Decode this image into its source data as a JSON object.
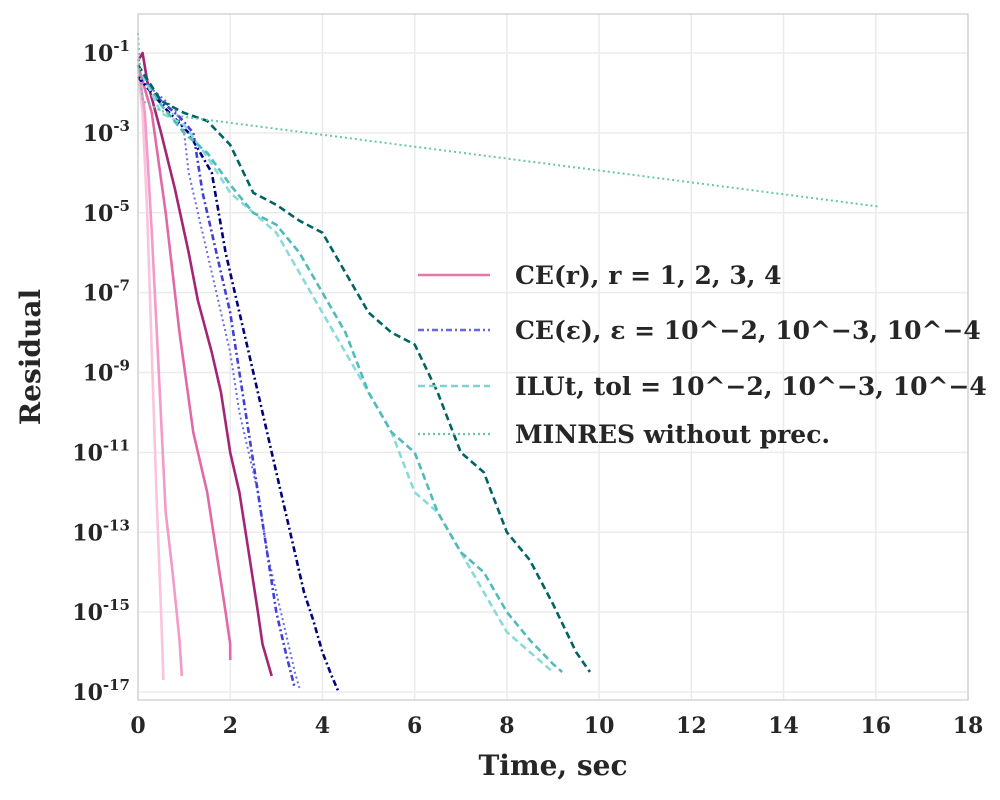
{
  "chart_data": {
    "type": "line",
    "xlabel": "Time, sec",
    "ylabel": "Residual",
    "xlim": [
      0,
      18
    ],
    "ylim_log10": [
      -17,
      0
    ],
    "x_ticks": [
      "0",
      "2",
      "4",
      "6",
      "8",
      "10",
      "12",
      "14",
      "16",
      "18"
    ],
    "y_ticks": [
      {
        "base": "10",
        "exp": "-1",
        "value": -1
      },
      {
        "base": "10",
        "exp": "-3",
        "value": -3
      },
      {
        "base": "10",
        "exp": "-5",
        "value": -5
      },
      {
        "base": "10",
        "exp": "-7",
        "value": -7
      },
      {
        "base": "10",
        "exp": "-9",
        "value": -9
      },
      {
        "base": "10",
        "exp": "-11",
        "value": -11
      },
      {
        "base": "10",
        "exp": "-13",
        "value": -13
      },
      {
        "base": "10",
        "exp": "-15",
        "value": -15
      },
      {
        "base": "10",
        "exp": "-17",
        "value": -17
      }
    ],
    "grid": true,
    "legend": {
      "placement": "center-right",
      "entries": [
        {
          "label": "CE(r), r = 1, 2, 3, 4",
          "color": "#e377ad",
          "style": "solid"
        },
        {
          "label": "CE(ε), ε = 10^−2, 10^−3, 10^−4",
          "color": "#6666e6",
          "style": "dashdot"
        },
        {
          "label": "ILUt, tol = 10^−2, 10^−3, 10^−4",
          "color": "#80d0d0",
          "style": "dashed"
        },
        {
          "label": "MINRES without prec.",
          "color": "#66c7a6",
          "style": "dotted"
        }
      ]
    },
    "series": [
      {
        "name": "CE(r=1)",
        "color": "#f9c4dc",
        "style": "solid",
        "x": [
          0.0,
          0.1,
          0.2,
          0.3,
          0.4,
          0.5,
          0.55
        ],
        "y": [
          -1.4,
          -2.5,
          -5.0,
          -8.5,
          -12.0,
          -15.0,
          -16.7
        ]
      },
      {
        "name": "CE(r=2)",
        "color": "#f49ac8",
        "style": "solid",
        "x": [
          0.0,
          0.15,
          0.3,
          0.45,
          0.6,
          0.75,
          0.9,
          0.95
        ],
        "y": [
          -1.3,
          -2.5,
          -5.5,
          -9.0,
          -12.5,
          -14.0,
          -15.7,
          -16.6
        ]
      },
      {
        "name": "CE(r=3)",
        "color": "#e06aa8",
        "style": "solid",
        "x": [
          0.0,
          0.3,
          0.6,
          0.9,
          1.2,
          1.5,
          1.7,
          1.9,
          2.0,
          2.0
        ],
        "y": [
          -1.3,
          -2.5,
          -5.0,
          -8.0,
          -10.5,
          -12.0,
          -13.5,
          -15.0,
          -15.8,
          -16.2
        ]
      },
      {
        "name": "CE(r=4)",
        "color": "#a32675",
        "style": "solid",
        "x": [
          0.0,
          0.1,
          0.2,
          0.5,
          0.8,
          1.1,
          1.3,
          1.6,
          1.8,
          2.0,
          2.2,
          2.4,
          2.6,
          2.7,
          2.9
        ],
        "y": [
          -1.2,
          -1.0,
          -1.7,
          -3.0,
          -4.4,
          -6.0,
          -7.2,
          -8.5,
          -9.5,
          -11.0,
          -12.0,
          -13.5,
          -15.0,
          -15.8,
          -16.6
        ]
      },
      {
        "name": "CE(eps=1e-2)",
        "color": "#6b6bf0",
        "style": "dotted",
        "x": [
          0.0,
          0.4,
          0.8,
          1.0,
          1.1,
          1.3,
          1.6,
          1.8,
          2.0,
          2.2,
          2.4,
          2.6,
          2.8,
          3.0,
          3.2,
          3.4,
          3.5
        ],
        "y": [
          -1.6,
          -2.0,
          -2.4,
          -3.0,
          -4.0,
          -5.0,
          -6.5,
          -7.5,
          -8.5,
          -10.0,
          -11.0,
          -12.0,
          -13.5,
          -14.5,
          -15.5,
          -16.5,
          -16.9
        ]
      },
      {
        "name": "CE(eps=1e-3)",
        "color": "#4040d8",
        "style": "dashdot",
        "x": [
          0.0,
          0.5,
          0.9,
          1.2,
          1.4,
          1.6,
          1.8,
          2.0,
          2.2,
          2.4,
          2.6,
          2.8,
          3.0,
          3.2,
          3.4
        ],
        "y": [
          -1.6,
          -2.2,
          -2.6,
          -3.0,
          -4.5,
          -5.5,
          -6.5,
          -7.5,
          -9.0,
          -10.5,
          -12.0,
          -13.5,
          -15.0,
          -16.0,
          -16.9
        ]
      },
      {
        "name": "CE(eps=1e-4)",
        "color": "#00007a",
        "style": "dashdot",
        "x": [
          0.0,
          0.6,
          1.1,
          1.6,
          1.9,
          2.1,
          2.4,
          2.7,
          3.0,
          3.3,
          3.6,
          3.8,
          4.0,
          4.2,
          4.35
        ],
        "y": [
          -1.6,
          -2.4,
          -3.0,
          -4.0,
          -6.0,
          -7.0,
          -8.5,
          -10.0,
          -11.5,
          -13.0,
          -14.5,
          -15.2,
          -16.0,
          -16.6,
          -17.0
        ]
      },
      {
        "name": "ILUt(1e-2)",
        "color": "#8adada",
        "style": "dashed",
        "x": [
          0.0,
          0.5,
          1.0,
          1.5,
          2.0,
          2.5,
          3.0,
          3.5,
          4.0,
          4.5,
          5.0,
          5.5,
          6.0,
          6.5,
          7.0,
          7.5,
          8.0,
          8.5,
          9.0
        ],
        "y": [
          -1.3,
          -2.5,
          -2.8,
          -3.6,
          -4.5,
          -5.0,
          -5.5,
          -6.5,
          -7.5,
          -8.5,
          -9.5,
          -10.5,
          -12.0,
          -12.5,
          -13.5,
          -14.5,
          -15.5,
          -16.0,
          -16.5
        ]
      },
      {
        "name": "ILUt(1e-3)",
        "color": "#4fbbbb",
        "style": "dashed",
        "x": [
          0.0,
          0.5,
          1.0,
          1.5,
          2.0,
          2.5,
          3.0,
          3.5,
          4.0,
          4.5,
          5.0,
          5.5,
          6.0,
          6.5,
          7.0,
          7.5,
          8.0,
          8.5,
          9.0,
          9.2
        ],
        "y": [
          -1.3,
          -2.3,
          -3.0,
          -3.5,
          -4.3,
          -5.0,
          -5.3,
          -6.0,
          -7.0,
          -8.0,
          -9.5,
          -10.5,
          -11.0,
          -12.5,
          -13.5,
          -14.0,
          -15.0,
          -15.7,
          -16.3,
          -16.5
        ]
      },
      {
        "name": "ILUt(1e-4)",
        "color": "#006464",
        "style": "dashed",
        "x": [
          0.0,
          0.5,
          1.0,
          1.5,
          2.0,
          2.5,
          3.0,
          3.5,
          4.0,
          4.5,
          5.0,
          5.5,
          6.0,
          6.5,
          7.0,
          7.5,
          8.0,
          8.5,
          9.0,
          9.5,
          9.8
        ],
        "y": [
          -1.3,
          -2.2,
          -2.5,
          -2.7,
          -3.3,
          -4.5,
          -4.8,
          -5.2,
          -5.5,
          -6.5,
          -7.5,
          -8.0,
          -8.3,
          -9.5,
          -11.0,
          -11.5,
          -13.0,
          -13.7,
          -14.8,
          -16.0,
          -16.5
        ]
      },
      {
        "name": "MINRES without prec.",
        "color": "#66c7a6",
        "style": "dotted",
        "x": [
          0.0,
          0.05,
          0.1,
          0.5,
          1.0,
          16.1
        ],
        "y": [
          -0.5,
          -1.5,
          -2.2,
          -2.45,
          -2.6,
          -4.85
        ]
      }
    ]
  }
}
